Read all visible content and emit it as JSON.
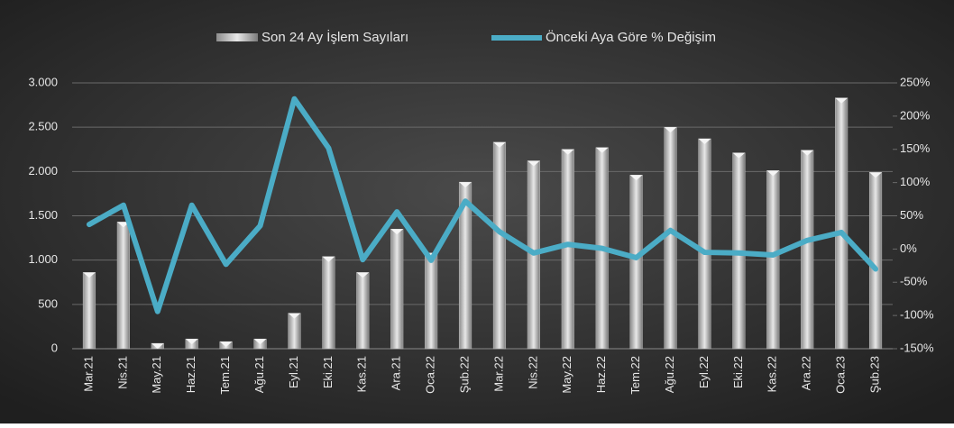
{
  "chart_data": {
    "type": "bar-line",
    "categories": [
      "Mar.21",
      "Nis.21",
      "May.21",
      "Haz.21",
      "Tem.21",
      "Ağu.21",
      "Eyl.21",
      "Eki.21",
      "Kas.21",
      "Ara.21",
      "Oca.22",
      "Şub.22",
      "Mar.22",
      "Nis.22",
      "May.22",
      "Haz.22",
      "Tem.22",
      "Ağu.22",
      "Eyl.22",
      "Eki.22",
      "Kas.22",
      "Ara.22",
      "Oca.23",
      "Şub.23"
    ],
    "series": [
      {
        "name": "Son 24 Ay İşlem Sayıları",
        "type": "bar",
        "color": "#bfbfbf",
        "values": [
          860,
          1430,
          60,
          110,
          80,
          110,
          400,
          1040,
          860,
          1350,
          1080,
          1880,
          2330,
          2120,
          2250,
          2270,
          1960,
          2500,
          2370,
          2210,
          2010,
          2240,
          2830,
          1990
        ]
      },
      {
        "name": "Önceki Aya Göre % Değişim",
        "type": "line",
        "axis": "y2",
        "color": "#4bacc6",
        "values": [
          37,
          66,
          -94,
          66,
          -23,
          35,
          226,
          152,
          -16,
          56,
          -17,
          72,
          26,
          -6,
          7,
          1,
          -13,
          28,
          -5,
          -6,
          -9,
          13,
          25,
          -30
        ]
      }
    ],
    "ylim": [
      0,
      3000
    ],
    "yticks": [
      0,
      500,
      {
        "value": 1000,
        "label": "1.000"
      },
      {
        "value": 1500,
        "label": "1.500"
      },
      {
        "value": 2000,
        "label": "2.000"
      },
      {
        "value": 2500,
        "label": "2.500"
      },
      {
        "value": 3000,
        "label": "3.000"
      }
    ],
    "y2lim": [
      -150,
      250
    ],
    "y2ticks": [
      {
        "value": -150,
        "label": "-150%"
      },
      {
        "value": -100,
        "label": "-100%"
      },
      {
        "value": -50,
        "label": "-50%"
      },
      {
        "value": 0,
        "label": "0%"
      },
      {
        "value": 50,
        "label": "50%"
      },
      {
        "value": 100,
        "label": "100%"
      },
      {
        "value": 150,
        "label": "150%"
      },
      {
        "value": 200,
        "label": "200%"
      },
      {
        "value": 250,
        "label": "250%"
      }
    ],
    "grid": true,
    "legend": "top"
  }
}
